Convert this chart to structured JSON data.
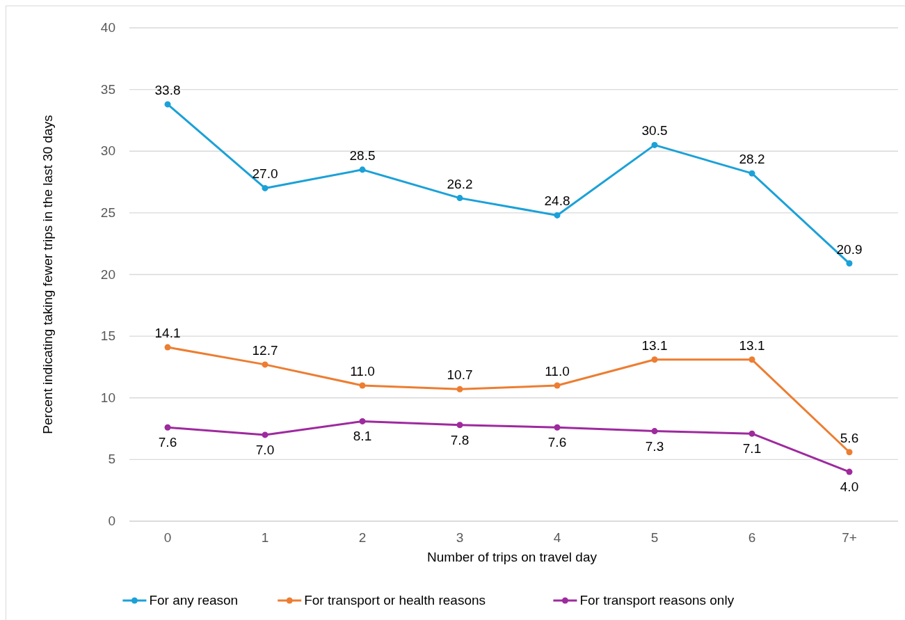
{
  "chart_data": {
    "type": "line",
    "xlabel": "Number of trips on travel day",
    "ylabel": "Percent indicating taking fewer trips in the last 30 days",
    "categories": [
      "0",
      "1",
      "2",
      "3",
      "4",
      "5",
      "6",
      "7+"
    ],
    "series": [
      {
        "name": "For any reason",
        "color": "#1ba1d8",
        "values": [
          33.8,
          27.0,
          28.5,
          26.2,
          24.8,
          30.5,
          28.2,
          20.9
        ],
        "value_labels": [
          "33.8",
          "27.0",
          "28.5",
          "26.2",
          "24.8",
          "30.5",
          "28.2",
          "20.9"
        ]
      },
      {
        "name": "For transport or health reasons",
        "color": "#ed7d31",
        "values": [
          14.1,
          12.7,
          11.0,
          10.7,
          11.0,
          13.1,
          13.1,
          5.6
        ],
        "value_labels": [
          "14.1",
          "12.7",
          "11.0",
          "10.7",
          "11.0",
          "13.1",
          "13.1",
          "5.6"
        ]
      },
      {
        "name": "For transport reasons only",
        "color": "#9e2a9e",
        "values": [
          7.6,
          7.0,
          8.1,
          7.8,
          7.6,
          7.3,
          7.1,
          4.0
        ],
        "value_labels": [
          "7.6",
          "7.0",
          "8.1",
          "7.8",
          "7.6",
          "7.3",
          "7.1",
          "4.0"
        ]
      }
    ],
    "ylim": [
      0,
      40
    ],
    "yticks": [
      0,
      5,
      10,
      15,
      20,
      25,
      30,
      35,
      40
    ],
    "grid": "y",
    "legend": "bottom",
    "marker": "circle",
    "line_style": "solid"
  }
}
